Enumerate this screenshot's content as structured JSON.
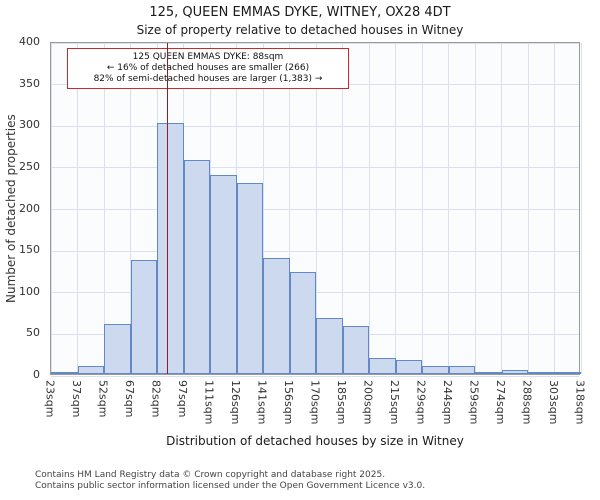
{
  "chart_data": {
    "type": "bar",
    "title": "125, QUEEN EMMAS DYKE, WITNEY, OX28 4DT",
    "subtitle": "Size of property relative to detached houses in Witney",
    "xlabel": "Distribution of detached houses by size in Witney",
    "ylabel": "Number of detached properties",
    "categories": [
      "23sqm",
      "37sqm",
      "52sqm",
      "67sqm",
      "82sqm",
      "97sqm",
      "111sqm",
      "126sqm",
      "141sqm",
      "156sqm",
      "170sqm",
      "185sqm",
      "200sqm",
      "215sqm",
      "229sqm",
      "244sqm",
      "259sqm",
      "274sqm",
      "288sqm",
      "303sqm",
      "318sqm"
    ],
    "values": [
      2,
      10,
      60,
      137,
      301,
      257,
      239,
      230,
      139,
      123,
      67,
      58,
      19,
      17,
      10,
      10,
      3,
      5,
      3,
      2
    ],
    "ylim": [
      0,
      400
    ],
    "yticks": [
      0,
      50,
      100,
      150,
      200,
      250,
      300,
      350,
      400
    ],
    "grid": true,
    "legend": false,
    "marker": {
      "value_sqm": 88,
      "lines": [
        "125 QUEEN EMMAS DYKE: 88sqm",
        "← 16% of detached houses are smaller (266)",
        "82% of semi-detached houses are larger (1,383) →"
      ]
    },
    "colors": {
      "bar_fill": "#ccd9ee",
      "bar_edge": "#6388c6",
      "marker_line": "#8b2020",
      "annotation_border": "#cc2a2a",
      "gridline": "#d9e0f0"
    }
  },
  "footer": {
    "line1": "Contains HM Land Registry data © Crown copyright and database right 2025.",
    "line2": "Contains public sector information licensed under the Open Government Licence v3.0."
  }
}
